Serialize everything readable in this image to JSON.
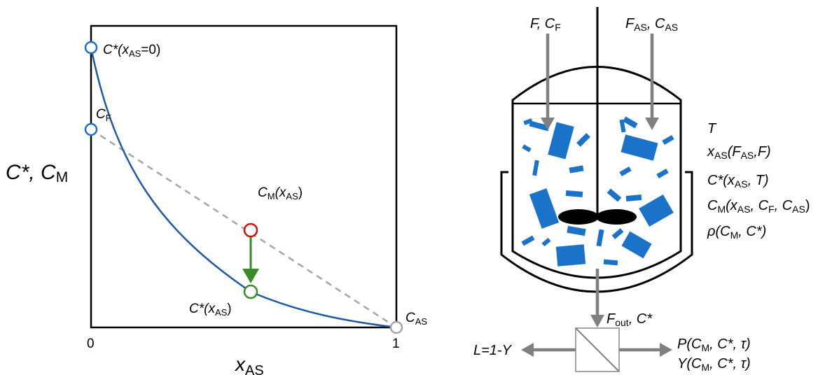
{
  "plot": {
    "y_axis_label": {
      "main": "C*, C",
      "sub": "M"
    },
    "x_axis_label": {
      "main": "x",
      "sub": "AS"
    },
    "tick_0": "0",
    "tick_1": "1",
    "labels": {
      "c_star_x0": {
        "pre": "C*(x",
        "sub": "AS",
        "post": "=0)"
      },
      "c_f": {
        "main": "C",
        "sub": "F"
      },
      "c_m_xas": {
        "main": "C",
        "sub1": "M",
        "mid": "(x",
        "sub2": "AS",
        "post": ")"
      },
      "c_star_xas": {
        "pre": "C*(x",
        "sub": "AS",
        "post": ")"
      },
      "c_as": {
        "main": "C",
        "sub": "AS"
      }
    }
  },
  "process": {
    "feed_left": {
      "pre": "F, C",
      "sub": "F"
    },
    "feed_right": {
      "a": "F",
      "a_sub": "AS",
      "mid": ", C",
      "b_sub": "AS"
    },
    "vars": {
      "t": "T",
      "xas": {
        "a": "x",
        "a_sub": "AS",
        "b": "(F",
        "b_sub": "AS",
        "c": ",F)"
      },
      "cstar": {
        "a": "C*(x",
        "a_sub": "AS",
        "b": ", T)"
      },
      "cm": {
        "a": "C",
        "a_sub": "M",
        "b": "(x",
        "b_sub": "AS",
        "c": ", C",
        "c_sub": "F",
        "d": ", C",
        "d_sub": "AS",
        "e": ")"
      },
      "rho": {
        "a": "ρ(C",
        "a_sub": "M",
        "b": ", C*)"
      }
    },
    "outlet": {
      "a": "F",
      "a_sub": "out",
      "b": ", C*"
    },
    "left_stream": "L=1-Y",
    "right_p": {
      "a": "P(C",
      "a_sub": "M",
      "b": ", C*, τ)"
    },
    "right_y": {
      "a": "Y(C",
      "a_sub": "M",
      "b": ", C*, τ)"
    }
  },
  "colors": {
    "curve": "#1f5aa0",
    "dashed": "#a6a6a6",
    "open_blue": "#1f6fc4",
    "mix_point": "#d01010",
    "green_arrow": "#3a8a2a",
    "crystal": "#1a73c8",
    "process_arrow": "#808080"
  }
}
